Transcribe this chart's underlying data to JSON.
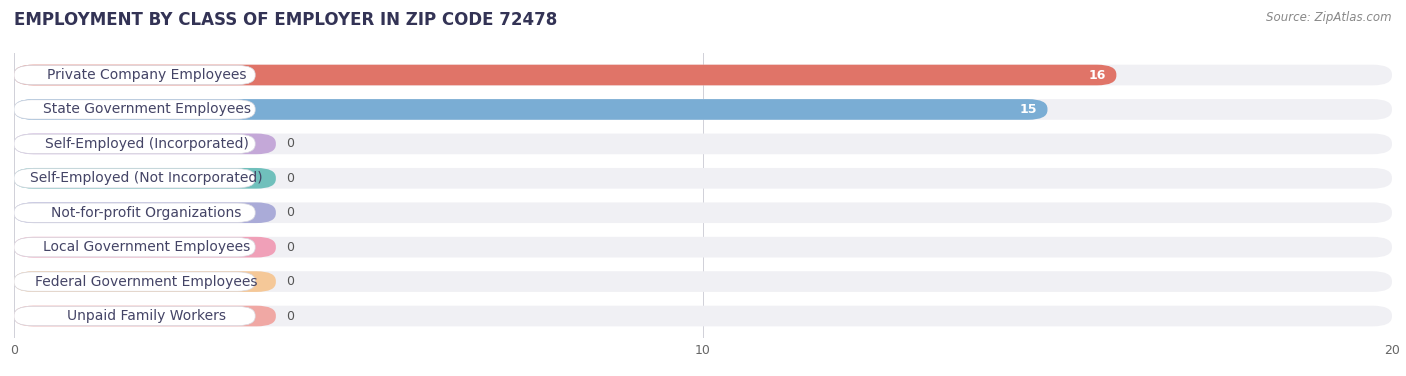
{
  "title": "EMPLOYMENT BY CLASS OF EMPLOYER IN ZIP CODE 72478",
  "source": "Source: ZipAtlas.com",
  "categories": [
    "Private Company Employees",
    "State Government Employees",
    "Self-Employed (Incorporated)",
    "Self-Employed (Not Incorporated)",
    "Not-for-profit Organizations",
    "Local Government Employees",
    "Federal Government Employees",
    "Unpaid Family Workers"
  ],
  "values": [
    16,
    15,
    0,
    0,
    0,
    0,
    0,
    0
  ],
  "bar_colors": [
    "#e07468",
    "#7aadd4",
    "#c4a8d8",
    "#70c0bc",
    "#aaabd8",
    "#f0a0b8",
    "#f5c898",
    "#f0a8a4"
  ],
  "xlim": [
    0,
    20
  ],
  "xticks": [
    0,
    10,
    20
  ],
  "bg_color": "#ffffff",
  "row_bg_color": "#f0f0f4",
  "title_fontsize": 12,
  "label_fontsize": 10,
  "value_fontsize": 9,
  "source_fontsize": 8.5
}
